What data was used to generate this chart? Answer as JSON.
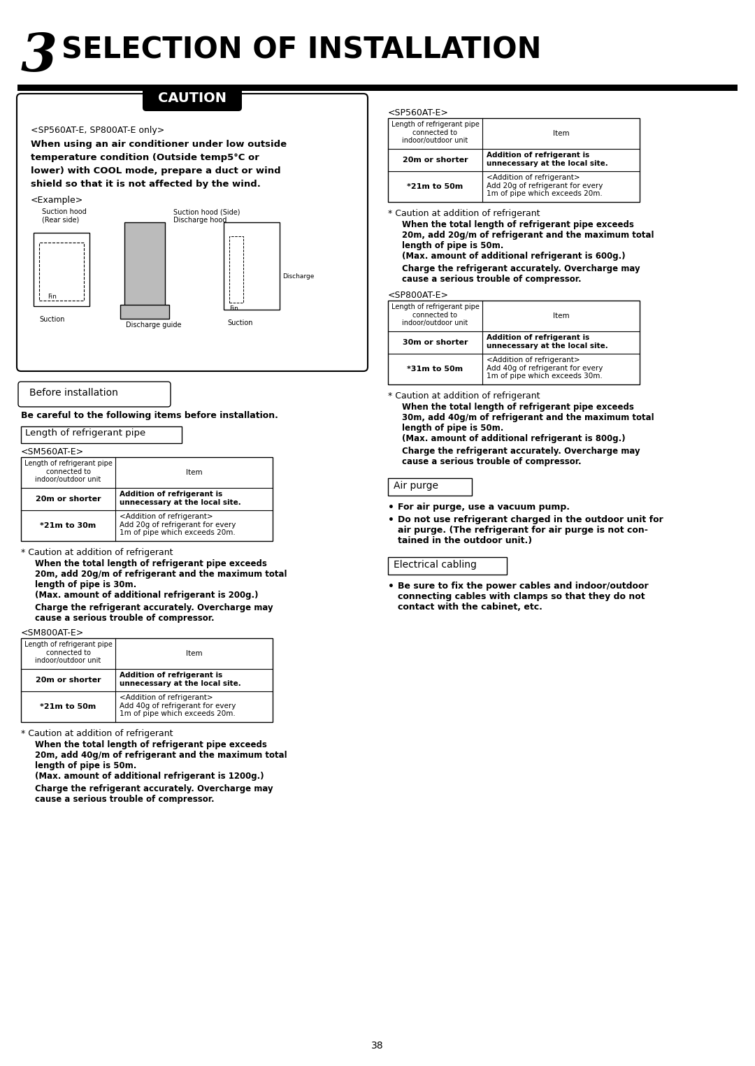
{
  "title_number": "3",
  "title_text": "SELECTION OF INSTALLATION",
  "bg_color": "#ffffff",
  "page_number": "38",
  "caution_label": "CAUTION",
  "caution_subtitle": "<SP560AT-E, SP800AT-E only>",
  "caution_body_line1": "When using an air conditioner under low outside",
  "caution_body_line2": "temperature condition (Outside temp5°C or",
  "caution_body_line3": "lower) with COOL mode, prepare a duct or wind",
  "caution_body_line4": "shield so that it is not affected by the wind.",
  "example_label": "<Example>",
  "before_install_label": "Before installation",
  "before_install_body": "Be careful to the following items before installation.",
  "refrig_pipe_label": "Length of refrigerant pipe",
  "sm560_label": "<SM560AT-E>",
  "sm560_col1_header": "Length of refrigerant pipe\nconnected to\nindoor/outdoor unit",
  "sm560_col2_header": "Item",
  "sm560_row1_col1": "20m or shorter",
  "sm560_row1_col2": "Addition of refrigerant is\nunnecessary at the local site.",
  "sm560_row2_col1": "*21m to 30m",
  "sm560_row2_col2": "<Addition of refrigerant>\nAdd 20g of refrigerant for every\n1m of pipe which exceeds 20m.",
  "sm560_caution_title": "* Caution at addition of refrigerant",
  "sm560_caution_para1_line1": "When the total length of refrigerant pipe exceeds",
  "sm560_caution_para1_line2": "20m, add 20g/m of refrigerant and the maximum total",
  "sm560_caution_para1_line3": "length of pipe is 30m.",
  "sm560_caution_para1_line4": "(Max. amount of additional refrigerant is 200g.)",
  "sm560_caution_para2_line1": "Charge the refrigerant accurately. Overcharge may",
  "sm560_caution_para2_line2": "cause a serious trouble of compressor.",
  "sm800_label": "<SM800AT-E>",
  "sm800_col1_header": "Length of refrigerant pipe\nconnected to\nindoor/outdoor unit",
  "sm800_col2_header": "Item",
  "sm800_row1_col1": "20m or shorter",
  "sm800_row1_col2": "Addition of refrigerant is\nunnecessary at the local site.",
  "sm800_row2_col1": "*21m to 50m",
  "sm800_row2_col2": "<Addition of refrigerant>\nAdd 40g of refrigerant for every\n1m of pipe which exceeds 20m.",
  "sm800_caution_title": "* Caution at addition of refrigerant",
  "sm800_caution_para1_line1": "When the total length of refrigerant pipe exceeds",
  "sm800_caution_para1_line2": "20m, add 40g/m of refrigerant and the maximum total",
  "sm800_caution_para1_line3": "length of pipe is 50m.",
  "sm800_caution_para1_line4": "(Max. amount of additional refrigerant is 1200g.)",
  "sm800_caution_para2_line1": "Charge the refrigerant accurately. Overcharge may",
  "sm800_caution_para2_line2": "cause a serious trouble of compressor.",
  "sp560_label": "<SP560AT-E>",
  "sp560_col1_header": "Length of refrigerant pipe\nconnected to\nindoor/outdoor unit",
  "sp560_col2_header": "Item",
  "sp560_row1_col1": "20m or shorter",
  "sp560_row1_col2": "Addition of refrigerant is\nunnecessary at the local site.",
  "sp560_row2_col1": "*21m to 50m",
  "sp560_row2_col2": "<Addition of refrigerant>\nAdd 20g of refrigerant for every\n1m of pipe which exceeds 20m.",
  "sp560_caution_title": "* Caution at addition of refrigerant",
  "sp560_caution_para1_line1": "When the total length of refrigerant pipe exceeds",
  "sp560_caution_para1_line2": "20m, add 20g/m of refrigerant and the maximum total",
  "sp560_caution_para1_line3": "length of pipe is 50m.",
  "sp560_caution_para1_line4": "(Max. amount of additional refrigerant is 600g.)",
  "sp560_caution_para2_line1": "Charge the refrigerant accurately. Overcharge may",
  "sp560_caution_para2_line2": "cause a serious trouble of compressor.",
  "sp800_label": "<SP800AT-E>",
  "sp800_col1_header": "Length of refrigerant pipe\nconnected to\nindoor/outdoor unit",
  "sp800_col2_header": "Item",
  "sp800_row1_col1": "30m or shorter",
  "sp800_row1_col2": "Addition of refrigerant is\nunnecessary at the local site.",
  "sp800_row2_col1": "*31m to 50m",
  "sp800_row2_col2": "<Addition of refrigerant>\nAdd 40g of refrigerant for every\n1m of pipe which exceeds 30m.",
  "sp800_caution_title": "* Caution at addition of refrigerant",
  "sp800_caution_para1_line1": "When the total length of refrigerant pipe exceeds",
  "sp800_caution_para1_line2": "30m, add 40g/m of refrigerant and the maximum total",
  "sp800_caution_para1_line3": "length of pipe is 50m.",
  "sp800_caution_para1_line4": "(Max. amount of additional refrigerant is 800g.)",
  "sp800_caution_para2_line1": "Charge the refrigerant accurately. Overcharge may",
  "sp800_caution_para2_line2": "cause a serious trouble of compressor.",
  "air_purge_label": "Air purge",
  "air_purge_b1": "For air purge, use a vacuum pump.",
  "air_purge_b2_l1": "Do not use refrigerant charged in the outdoor unit for",
  "air_purge_b2_l2": "air purge. (The refrigerant for air purge is not con-",
  "air_purge_b2_l3": "tained in the outdoor unit.)",
  "elec_cabling_label": "Electrical cabling",
  "elec_b1_l1": "Be sure to fix the power cables and indoor/outdoor",
  "elec_b1_l2": "connecting cables with clamps so that they do not",
  "elec_b1_l3": "contact with the cabinet, etc."
}
